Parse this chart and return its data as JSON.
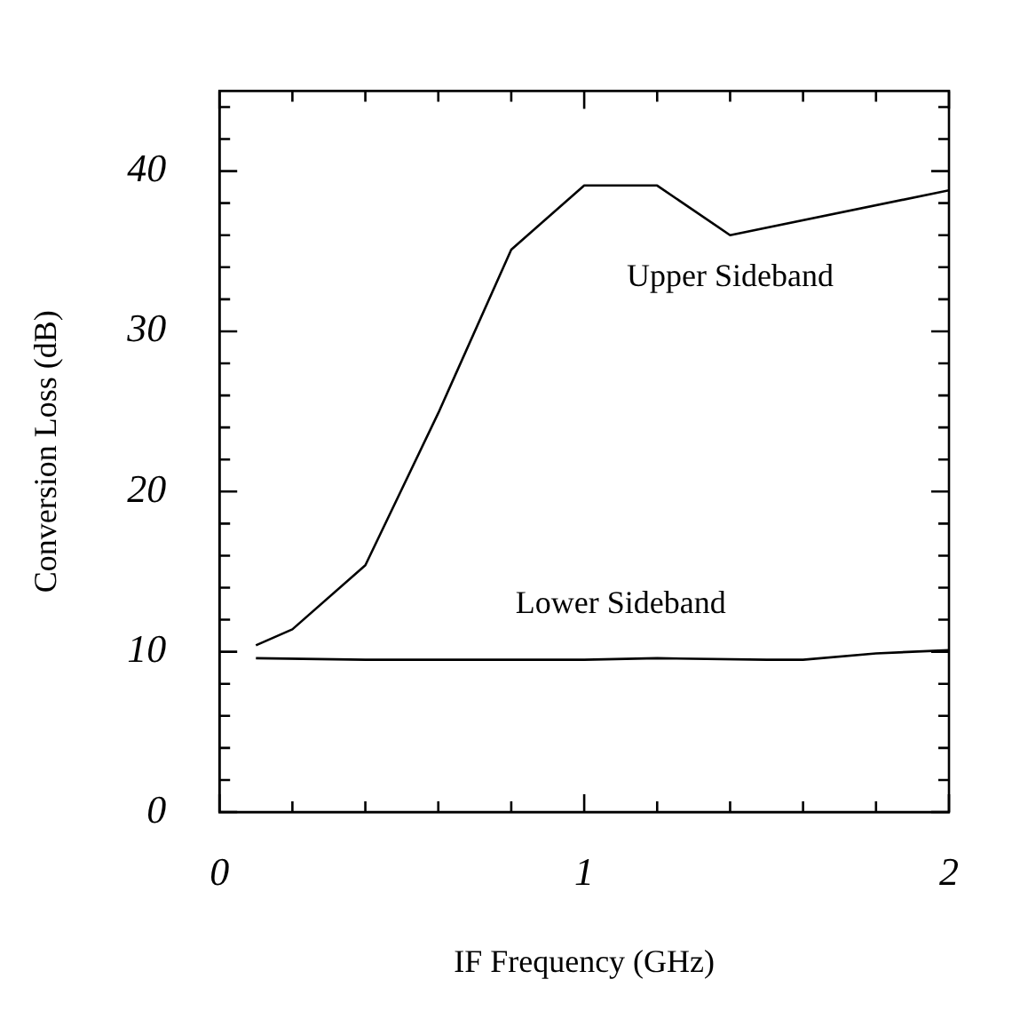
{
  "chart_data": {
    "type": "line",
    "xlabel": "IF Frequency (GHz)",
    "ylabel": "Conversion Loss (dB)",
    "xlim": [
      0,
      2
    ],
    "ylim": [
      0,
      45
    ],
    "xticks": [
      0,
      {
        "value": 0.2,
        "label": null
      },
      {
        "value": 0.4,
        "label": null
      },
      {
        "value": 0.6,
        "label": null
      },
      {
        "value": 0.8,
        "label": null
      },
      1,
      {
        "value": 1.2,
        "label": null
      },
      {
        "value": 1.4,
        "label": null
      },
      {
        "value": 1.6,
        "label": null
      },
      {
        "value": 1.8,
        "label": null
      },
      2
    ],
    "yticks": [
      0,
      {
        "value": 2,
        "label": null
      },
      {
        "value": 4,
        "label": null
      },
      {
        "value": 6,
        "label": null
      },
      {
        "value": 8,
        "label": null
      },
      10,
      {
        "value": 12,
        "label": null
      },
      {
        "value": 14,
        "label": null
      },
      {
        "value": 16,
        "label": null
      },
      {
        "value": 18,
        "label": null
      },
      20,
      {
        "value": 22,
        "label": null
      },
      {
        "value": 24,
        "label": null
      },
      {
        "value": 26,
        "label": null
      },
      {
        "value": 28,
        "label": null
      },
      30,
      {
        "value": 32,
        "label": null
      },
      {
        "value": 34,
        "label": null
      },
      {
        "value": 36,
        "label": null
      },
      {
        "value": 38,
        "label": null
      },
      40,
      {
        "value": 42,
        "label": null
      },
      {
        "value": 44,
        "label": null
      }
    ],
    "grid": false,
    "legend": false,
    "marker": "none",
    "line_style": "solid",
    "series": [
      {
        "name": "Upper Sideband",
        "color": "#000000",
        "x": [
          0.1,
          0.2,
          0.4,
          0.6,
          0.8,
          1.0,
          1.2,
          1.4,
          2.0
        ],
        "values": [
          10.4,
          11.4,
          15.4,
          24.9,
          35.1,
          39.1,
          39.1,
          36.0,
          38.8
        ]
      },
      {
        "name": "Lower Sideband",
        "color": "#000000",
        "x": [
          0.1,
          0.4,
          1.0,
          1.2,
          1.5,
          1.6,
          1.8,
          2.0
        ],
        "values": [
          9.6,
          9.5,
          9.5,
          9.6,
          9.5,
          9.5,
          9.9,
          10.1
        ]
      }
    ]
  }
}
